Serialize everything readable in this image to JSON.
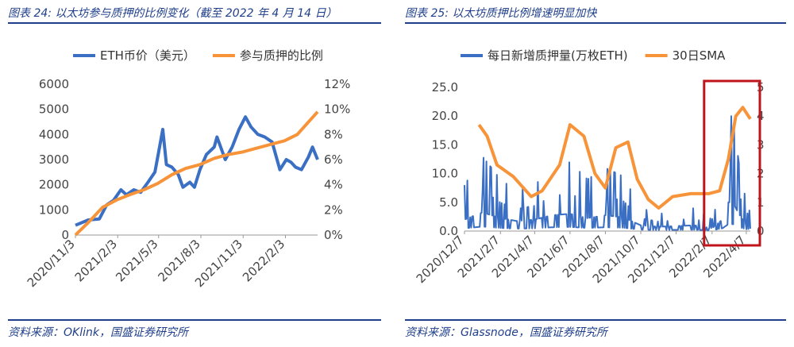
{
  "left": {
    "title": "图表 24:  以太坊参与质押的比例变化（截至 2022 年 4 月 14 日）",
    "source": "资料来源：OKlink，国盛证券研究所"
  },
  "right": {
    "title": "图表 25:  以太坊质押比例增速明显加快",
    "source": "资料来源：Glassnode，国盛证券研究所"
  },
  "colors": {
    "blue": "#3a6fc4",
    "orange": "#f7943a",
    "accent": "#1f3f8a",
    "highlight": "#c0141c"
  },
  "chart_data": [
    {
      "type": "line",
      "series": [
        {
          "name": "ETH币价（美元）",
          "axis": "left",
          "color": "#3a6fc4",
          "x": [
            "2020-11-03",
            "2020-12-01",
            "2020-12-25",
            "2021-01-10",
            "2021-01-25",
            "2021-02-10",
            "2021-02-22",
            "2021-03-10",
            "2021-03-25",
            "2021-04-10",
            "2021-04-25",
            "2021-05-03",
            "2021-05-12",
            "2021-05-20",
            "2021-06-01",
            "2021-06-15",
            "2021-06-25",
            "2021-07-10",
            "2021-07-20",
            "2021-08-01",
            "2021-08-15",
            "2021-09-01",
            "2021-09-07",
            "2021-09-25",
            "2021-10-10",
            "2021-10-25",
            "2021-11-08",
            "2021-11-20",
            "2021-12-05",
            "2021-12-20",
            "2022-01-05",
            "2022-01-22",
            "2022-02-05",
            "2022-02-15",
            "2022-02-25",
            "2022-03-10",
            "2022-03-25",
            "2022-04-03",
            "2022-04-14"
          ],
          "y": [
            390,
            600,
            640,
            1200,
            1380,
            1800,
            1600,
            1800,
            1700,
            2100,
            2500,
            3300,
            4200,
            2800,
            2700,
            2400,
            1900,
            2100,
            1900,
            2600,
            3200,
            3500,
            3900,
            3000,
            3500,
            4200,
            4700,
            4300,
            4000,
            3900,
            3700,
            2600,
            3000,
            2900,
            2700,
            2600,
            3100,
            3500,
            3000
          ]
        },
        {
          "name": "参与质押的比例",
          "axis": "right",
          "color": "#f7943a",
          "x": [
            "2020-11-03",
            "2020-12-01",
            "2021-01-01",
            "2021-02-01",
            "2021-03-01",
            "2021-04-01",
            "2021-05-01",
            "2021-06-01",
            "2021-07-01",
            "2021-08-01",
            "2021-09-01",
            "2021-10-01",
            "2021-11-01",
            "2021-12-01",
            "2022-01-01",
            "2022-02-01",
            "2022-03-01",
            "2022-04-14"
          ],
          "y": [
            0.0,
            1.0,
            2.2,
            2.8,
            3.2,
            3.6,
            4.1,
            4.8,
            5.3,
            5.6,
            6.1,
            6.4,
            6.6,
            6.9,
            7.2,
            7.5,
            8.0,
            9.8
          ]
        }
      ],
      "yleft": {
        "lim": [
          0,
          6000
        ],
        "ticks": [
          "0",
          "1000",
          "2000",
          "3000",
          "4000",
          "5000",
          "6000"
        ]
      },
      "yright": {
        "lim": [
          0,
          12
        ],
        "ticks": [
          "0%",
          "2%",
          "4%",
          "6%",
          "8%",
          "10%",
          "12%"
        ]
      },
      "xticks": [
        "2020/11/3",
        "2021/2/3",
        "2021/5/3",
        "2021/8/3",
        "2021/11/3",
        "2022/2/3"
      ],
      "legend": "top-center"
    },
    {
      "type": "line",
      "series": [
        {
          "name": "每日新增质押量(万枚ETH)",
          "axis": "left",
          "color": "#3a6fc4",
          "style": "spiky",
          "x": [
            "2020-12-07",
            "2021-01-07",
            "2021-02-07",
            "2021-03-07",
            "2021-04-07",
            "2021-05-07",
            "2021-06-07",
            "2021-07-07",
            "2021-08-07",
            "2021-09-07",
            "2021-10-07",
            "2021-11-07",
            "2021-12-07",
            "2022-01-07",
            "2022-02-07",
            "2022-02-25",
            "2022-03-07",
            "2022-03-15",
            "2022-03-25",
            "2022-04-07",
            "2022-04-14"
          ],
          "y": [
            8.0,
            13.0,
            9.0,
            7.0,
            8.0,
            11.0,
            12.0,
            9.0,
            11.0,
            9.5,
            4.0,
            3.0,
            3.5,
            4.0,
            2.0,
            8.0,
            20.0,
            20.0,
            12.0,
            5.0,
            7.0
          ]
        },
        {
          "name": "30日SMA",
          "axis": "right",
          "color": "#f7943a",
          "x": [
            "2021-01-01",
            "2021-01-15",
            "2021-02-01",
            "2021-03-01",
            "2021-04-01",
            "2021-04-20",
            "2021-05-20",
            "2021-06-07",
            "2021-07-01",
            "2021-07-20",
            "2021-08-07",
            "2021-08-25",
            "2021-09-15",
            "2021-10-01",
            "2021-10-20",
            "2021-11-07",
            "2021-12-01",
            "2022-01-01",
            "2022-02-01",
            "2022-02-20",
            "2022-03-07",
            "2022-03-20",
            "2022-04-01",
            "2022-04-14"
          ],
          "y": [
            3.7,
            3.3,
            2.3,
            1.9,
            1.2,
            1.4,
            2.3,
            3.7,
            3.3,
            2.0,
            1.5,
            2.9,
            3.1,
            1.8,
            1.1,
            0.8,
            1.2,
            1.3,
            1.3,
            1.4,
            2.5,
            4.0,
            4.3,
            3.9
          ]
        }
      ],
      "yleft": {
        "lim": [
          0,
          25
        ],
        "ticks": [
          "0.0",
          "5.0",
          "10.0",
          "15.0",
          "20.0",
          "25.0"
        ]
      },
      "yright": {
        "lim": [
          0,
          5
        ],
        "ticks": [
          "0",
          "1",
          "2",
          "3",
          "4",
          "5"
        ]
      },
      "xticks": [
        "2020/12/7",
        "2021/2/7",
        "2021/4/7",
        "2021/6/7",
        "2021/8/7",
        "2021/10/7",
        "2021/12/7",
        "2022/2/7",
        "2022/4/7"
      ],
      "legend": "top-center"
    }
  ]
}
